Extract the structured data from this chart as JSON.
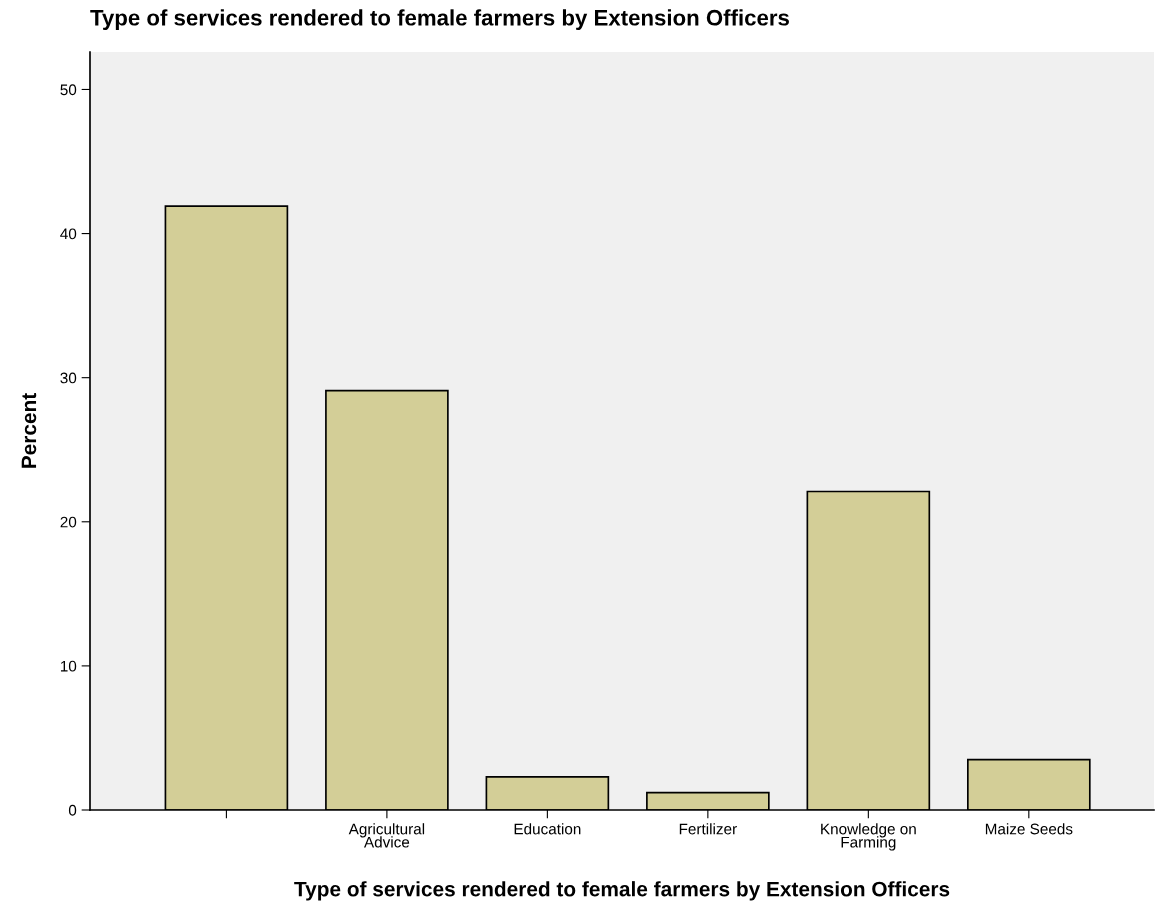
{
  "chart_data": {
    "type": "bar",
    "title": "Type of services rendered to female farmers by Extension Officers",
    "xlabel": "Type of services rendered to female farmers by Extension Officers",
    "ylabel": "Percent",
    "categories": [
      null,
      "Agricultural\nAdvice",
      "Education",
      "Fertilizer",
      "Knowledge on\nFarming",
      "Maize Seeds"
    ],
    "values": [
      41.9,
      29.1,
      2.3,
      1.2,
      22.1,
      3.5
    ],
    "color": "#d3ce97",
    "ylim": [
      0,
      52.6
    ],
    "yticks": [
      0,
      10,
      20,
      30,
      40,
      50
    ],
    "grid": false,
    "legend": false
  }
}
